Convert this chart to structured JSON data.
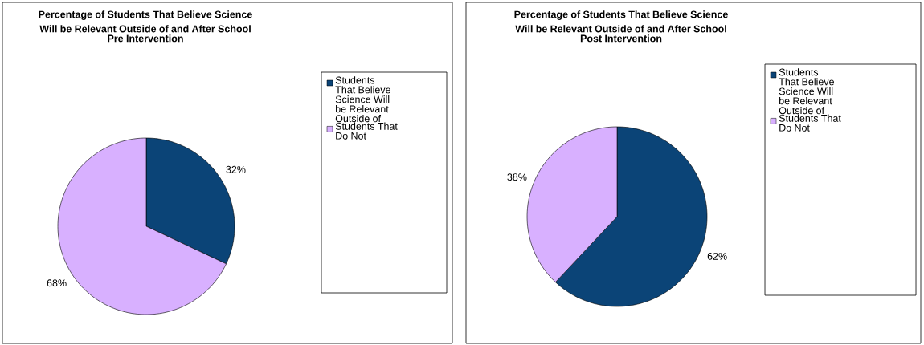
{
  "chart_data": [
    {
      "type": "pie",
      "title": "Percentage of Students That Believe Science Will be Relevant Outside of and After School",
      "subtitle": "Pre Intervention",
      "categories": [
        "Students That Believe Science Will be Relevant Outside of",
        "Students That Do Not"
      ],
      "values": [
        32,
        68
      ],
      "value_labels": [
        "32%",
        "68%"
      ],
      "colors": [
        "#0b4477",
        "#d8b0ff"
      ],
      "legend": "right"
    },
    {
      "type": "pie",
      "title": "Percentage of Students That Believe Science Will be Relevant Outside of and After School",
      "subtitle": "Post Intervention",
      "categories": [
        "Students That Believe Science Will be Relevant Outside of",
        "Students That Do Not"
      ],
      "values": [
        62,
        38
      ],
      "value_labels": [
        "62%",
        "38%"
      ],
      "colors": [
        "#0b4477",
        "#d8b0ff"
      ],
      "legend": "right"
    }
  ]
}
